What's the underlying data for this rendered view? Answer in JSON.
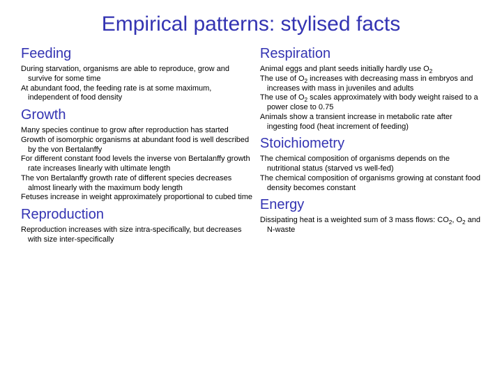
{
  "title": "Empirical patterns: stylised facts",
  "colors": {
    "heading": "#3333b2",
    "body": "#000000",
    "background": "#ffffff"
  },
  "font": {
    "title_size": 30,
    "heading_size": 20,
    "body_size": 11
  },
  "left": {
    "feeding": {
      "heading": "Feeding",
      "items": [
        "During starvation, organisms are able to reproduce, grow and survive for some time",
        "At abundant food, the feeding rate is at some maximum, independent of food density"
      ]
    },
    "growth": {
      "heading": "Growth",
      "items": [
        "Many species continue to grow after reproduction has started",
        "Growth of isomorphic organisms at abundant food is well described by the von Bertalanffy",
        "For different constant food levels the inverse von Bertalanffy growth rate increases linearly with ultimate length",
        "The von Bertalanffy growth rate of different species decreases almost linearly with the maximum body length",
        "Fetuses increase in weight approximately proportional to cubed time"
      ]
    },
    "reproduction": {
      "heading": "Reproduction",
      "items": [
        "Reproduction increases with size intra-specifically, but decreases with size inter-specifically"
      ]
    }
  },
  "right": {
    "respiration": {
      "heading": "Respiration",
      "items": [
        "Animal eggs and plant seeds initially hardly use O₂",
        "The use of O₂ increases with decreasing mass in embryos and increases with mass in juveniles and adults",
        "The use of O₂ scales approximately with body weight raised to a power close to 0.75",
        "Animals show a transient increase in metabolic rate after ingesting food (heat increment of feeding)"
      ]
    },
    "stoichiometry": {
      "heading": "Stoichiometry",
      "items": [
        "The chemical composition of organisms depends on the nutritional status (starved vs well-fed)",
        "The chemical composition of organisms growing at constant food density becomes constant"
      ]
    },
    "energy": {
      "heading": "Energy",
      "items": [
        "Dissipating heat is a weighted sum of 3 mass flows: CO₂, O₂ and N-waste"
      ]
    }
  }
}
